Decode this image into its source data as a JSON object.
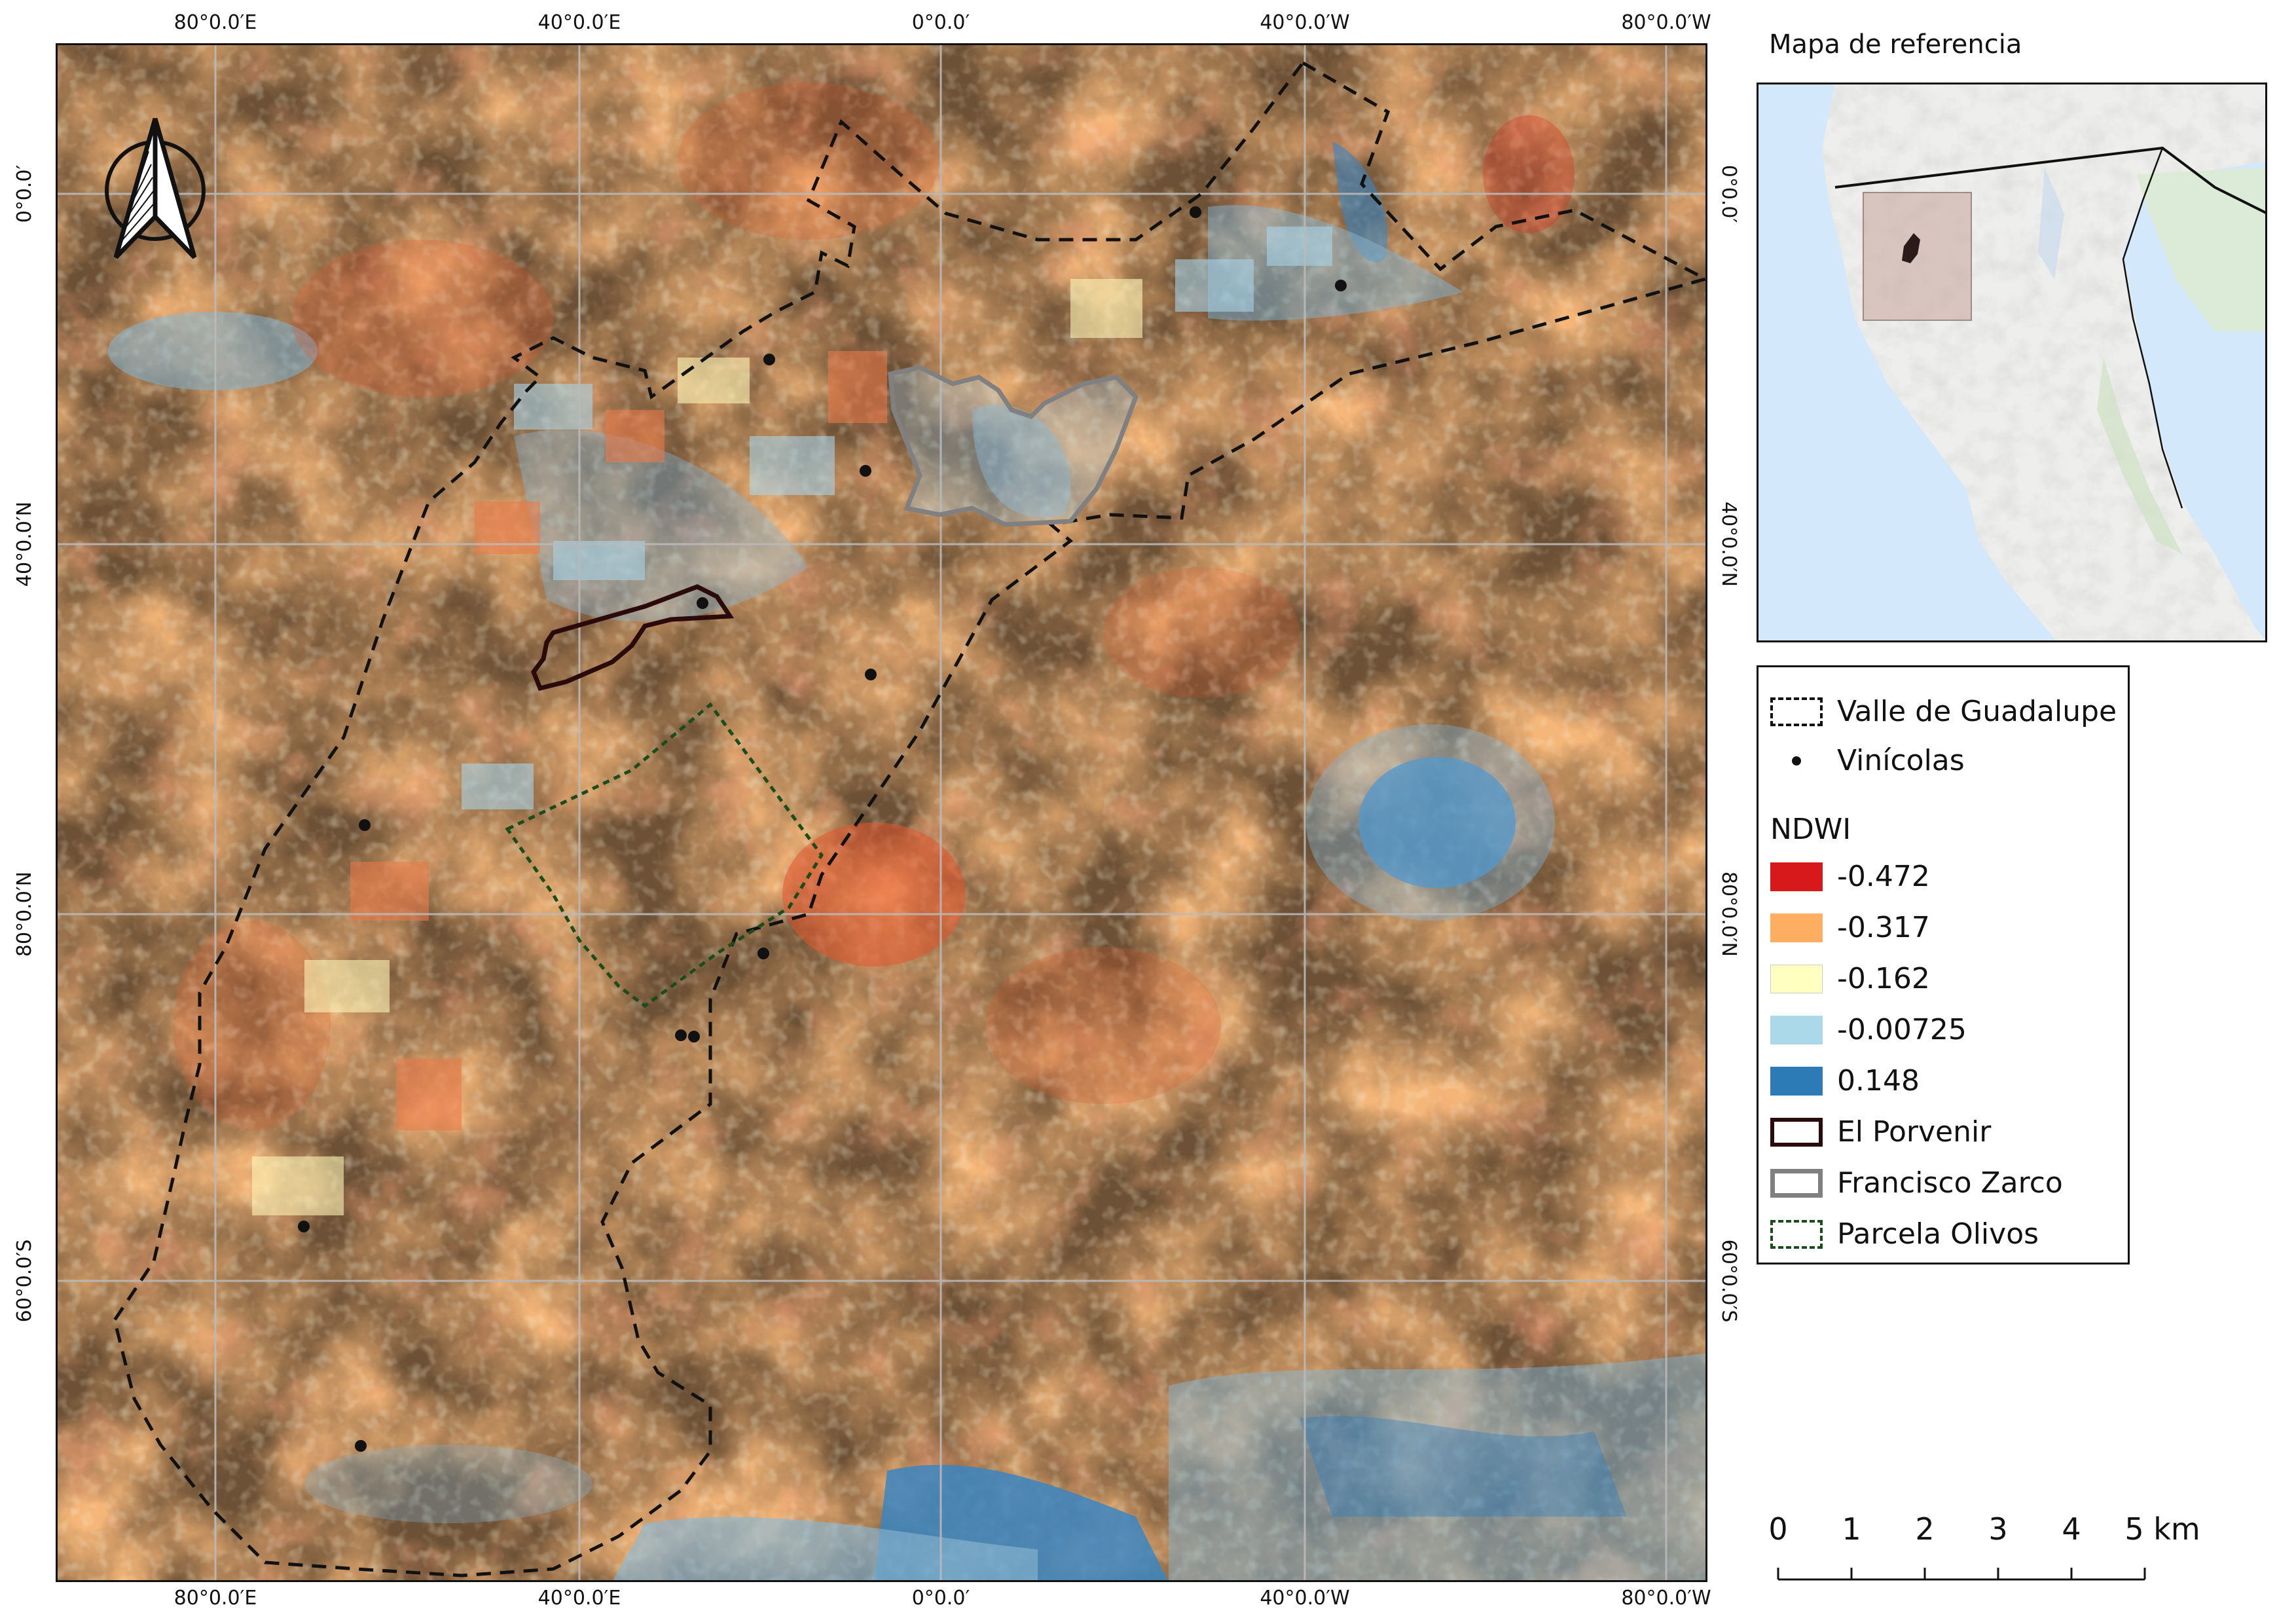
{
  "map": {
    "graticule_labels": {
      "top": [
        "80°0.0′E",
        "40°0.0′E",
        "0°0.0′",
        "40°0.0′W",
        "80°0.0′W"
      ],
      "bottom": [
        "80°0.0′E",
        "40°0.0′E",
        "0°0.0′",
        "40°0.0′W",
        "80°0.0′W"
      ],
      "left": [
        "0°0.0′",
        "40°0.0′N",
        "80°0.0′N",
        "60°0.0′S"
      ],
      "right": [
        "0°0.0′",
        "40°0.0′N",
        "80°0.0′N",
        "60°0.0′S"
      ]
    },
    "north_arrow_icon": "north-arrow-icon",
    "raster_palette": [
      "#d7301f",
      "#f4a05a",
      "#fdf5b8",
      "#a9d4e8",
      "#3a86c2"
    ]
  },
  "reference_map": {
    "title": "Mapa de referencia"
  },
  "legend": {
    "items": [
      {
        "label": "Valle de Guadalupe",
        "style": "dashed-black-polygon"
      },
      {
        "label": "Vinícolas",
        "style": "black-dot"
      }
    ],
    "ndwi_heading": "NDWI",
    "ndwi_classes": [
      {
        "label": "-0.472",
        "color": "#d7191c"
      },
      {
        "label": "-0.317",
        "color": "#fdae61"
      },
      {
        "label": "-0.162",
        "color": "#ffffbf"
      },
      {
        "label": "-0.00725",
        "color": "#abd9e9"
      },
      {
        "label": "0.148",
        "color": "#2c7bb6"
      }
    ],
    "boundaries": [
      {
        "label": "El Porvenir",
        "color": "#2a0a0a",
        "style": "solid"
      },
      {
        "label": "Francisco Zarco",
        "color": "#808080",
        "style": "solid"
      },
      {
        "label": "Parcela Olivos",
        "color": "#1a4d1a",
        "style": "dashed"
      }
    ]
  },
  "scale_bar": {
    "labels": [
      "0",
      "1",
      "2",
      "3",
      "4",
      "5 km"
    ]
  }
}
